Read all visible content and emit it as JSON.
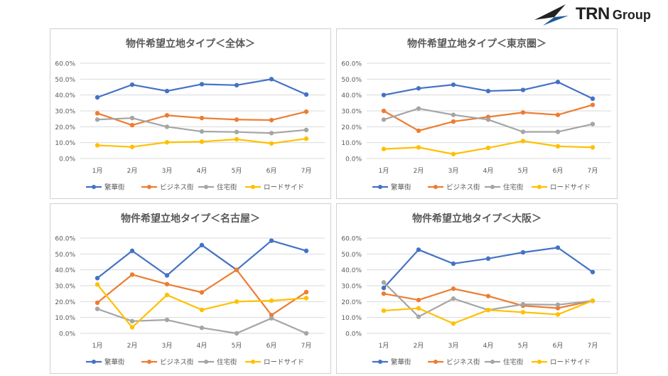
{
  "logo": {
    "text_main": "TRN",
    "text_sub": "Group",
    "colors": {
      "dark": "#222222",
      "blue": "#1f5a96"
    }
  },
  "colors": {
    "繁華街": "#4472c4",
    "ビジネス街": "#ed7d31",
    "住宅街": "#a5a5a5",
    "ロードサイド": "#ffc000"
  },
  "chart_data": [
    {
      "type": "line",
      "title": "物件希望立地タイプ＜全体＞",
      "categories": [
        "1月",
        "2月",
        "3月",
        "4月",
        "5月",
        "6月",
        "7月"
      ],
      "yticks": [
        "0.0%",
        "10.0%",
        "20.0%",
        "30.0%",
        "40.0%",
        "50.0%",
        "60.0%"
      ],
      "ylim": [
        0,
        60
      ],
      "grid": true,
      "legend": "bottom",
      "series": [
        {
          "name": "繁華街",
          "values": [
            38.5,
            46.5,
            42.5,
            46.8,
            46.2,
            50.0,
            40.3
          ]
        },
        {
          "name": "ビジネス街",
          "values": [
            28.5,
            21.0,
            27.2,
            25.5,
            24.5,
            24.2,
            29.5
          ]
        },
        {
          "name": "住宅街",
          "values": [
            24.5,
            25.5,
            20.0,
            17.0,
            16.7,
            16.0,
            18.0
          ]
        },
        {
          "name": "ロードサイド",
          "values": [
            8.3,
            7.3,
            10.2,
            10.6,
            12.1,
            9.5,
            12.5
          ]
        }
      ]
    },
    {
      "type": "line",
      "title": "物件希望立地タイプ＜東京圏＞",
      "categories": [
        "1月",
        "2月",
        "3月",
        "4月",
        "5月",
        "6月",
        "7月"
      ],
      "yticks": [
        "0.0%",
        "10.0%",
        "20.0%",
        "30.0%",
        "40.0%",
        "50.0%",
        "60.0%"
      ],
      "ylim": [
        0,
        60
      ],
      "grid": true,
      "legend": "bottom",
      "series": [
        {
          "name": "繁華街",
          "values": [
            40.0,
            44.2,
            46.5,
            42.5,
            43.2,
            48.2,
            37.7
          ]
        },
        {
          "name": "ビジネス街",
          "values": [
            30.0,
            17.5,
            23.3,
            26.2,
            29.0,
            27.5,
            33.8
          ]
        },
        {
          "name": "住宅街",
          "values": [
            24.5,
            31.5,
            27.5,
            24.5,
            16.8,
            16.8,
            21.7
          ]
        },
        {
          "name": "ロードサイド",
          "values": [
            6.0,
            7.0,
            2.8,
            6.7,
            11.0,
            7.7,
            7.0
          ]
        }
      ]
    },
    {
      "type": "line",
      "title": "物件希望立地タイプ＜名古屋＞",
      "categories": [
        "1月",
        "2月",
        "3月",
        "4月",
        "5月",
        "6月",
        "7月"
      ],
      "yticks": [
        "0.0%",
        "10.0%",
        "20.0%",
        "30.0%",
        "40.0%",
        "50.0%",
        "60.0%"
      ],
      "ylim": [
        0,
        60
      ],
      "grid": true,
      "legend": "bottom",
      "series": [
        {
          "name": "繁華街",
          "values": [
            34.8,
            52.0,
            36.5,
            55.6,
            40.0,
            58.4,
            52.0
          ]
        },
        {
          "name": "ビジネス街",
          "values": [
            19.3,
            37.0,
            31.0,
            25.8,
            40.0,
            11.5,
            26.0
          ]
        },
        {
          "name": "住宅街",
          "values": [
            15.4,
            7.7,
            8.5,
            3.5,
            0.0,
            9.5,
            0.0
          ]
        },
        {
          "name": "ロードサイド",
          "values": [
            30.8,
            3.8,
            24.2,
            14.8,
            20.0,
            20.6,
            22.2
          ]
        }
      ]
    },
    {
      "type": "line",
      "title": "物件希望立地タイプ＜大阪＞",
      "categories": [
        "1月",
        "2月",
        "3月",
        "4月",
        "5月",
        "6月",
        "7月"
      ],
      "yticks": [
        "0.0%",
        "10.0%",
        "20.0%",
        "30.0%",
        "40.0%",
        "50.0%",
        "60.0%"
      ],
      "ylim": [
        0,
        60
      ],
      "grid": true,
      "legend": "bottom",
      "series": [
        {
          "name": "繁華街",
          "values": [
            28.6,
            52.7,
            43.9,
            47.1,
            51.0,
            54.0,
            38.6
          ]
        },
        {
          "name": "ビジネス街",
          "values": [
            25.0,
            21.0,
            28.1,
            23.5,
            17.4,
            15.9,
            20.5
          ]
        },
        {
          "name": "住宅街",
          "values": [
            32.1,
            10.5,
            21.9,
            14.7,
            18.3,
            18.0,
            20.5
          ]
        },
        {
          "name": "ロードサイド",
          "values": [
            14.3,
            15.8,
            6.2,
            14.7,
            13.3,
            11.9,
            20.6
          ]
        }
      ]
    }
  ]
}
